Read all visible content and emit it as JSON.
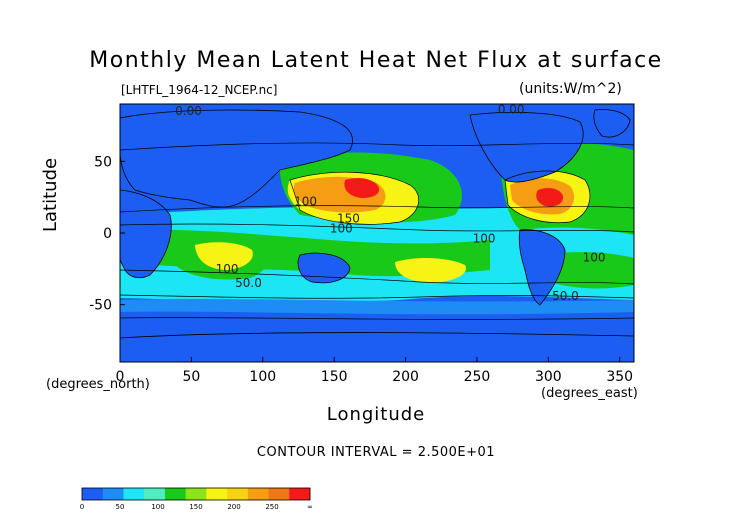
{
  "chart_data": {
    "type": "heatmap",
    "title": "Monthly Mean Latent Heat Net Flux at surface",
    "file_label": "[LHTFL_1964-12_NCEP.nc]",
    "units_label": "(units:W/m^2)",
    "xlabel": "Longitude",
    "ylabel": "Latitude",
    "x_unit": "(degrees_east)",
    "y_unit": "(degrees_north)",
    "xlim": [
      0,
      360
    ],
    "ylim": [
      -90,
      90
    ],
    "x_ticks": [
      0,
      50,
      100,
      150,
      200,
      250,
      300,
      350
    ],
    "y_ticks": [
      -50,
      0,
      50
    ],
    "contour_interval": "CONTOUR INTERVAL = 2.500E+01",
    "contour_labels": [
      {
        "text": "0.00",
        "lon": 48,
        "lat": 85
      },
      {
        "text": "0.00",
        "lon": 274,
        "lat": 86
      },
      {
        "text": "100",
        "lon": 130,
        "lat": 22
      },
      {
        "text": "150",
        "lon": 160,
        "lat": 10
      },
      {
        "text": "100",
        "lon": 155,
        "lat": 3
      },
      {
        "text": "100",
        "lon": 255,
        "lat": -4
      },
      {
        "text": "100",
        "lon": 75,
        "lat": -25
      },
      {
        "text": "50.0",
        "lon": 90,
        "lat": -35
      },
      {
        "text": "100",
        "lon": 332,
        "lat": -17
      },
      {
        "text": "50.0",
        "lon": 312,
        "lat": -44
      }
    ],
    "colorbar": {
      "levels": [
        0,
        50,
        100,
        150,
        200,
        250,
        "∞"
      ],
      "colors": [
        "#1d5ef2",
        "#1d8df5",
        "#1ce6f5",
        "#52ecbf",
        "#19c919",
        "#8be31a",
        "#f7f312",
        "#f7d411",
        "#f59e13",
        "#f07716",
        "#f51a1a"
      ]
    }
  }
}
